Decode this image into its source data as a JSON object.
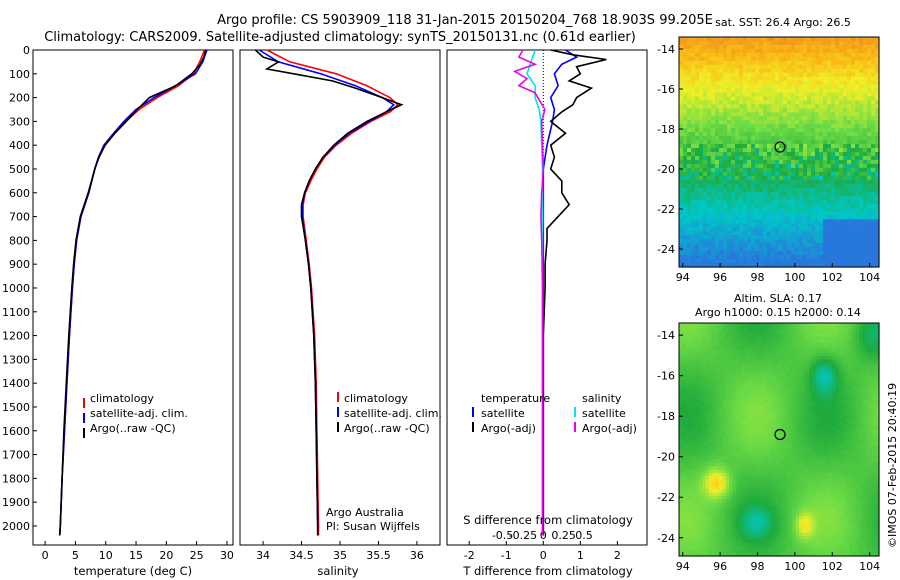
{
  "title": {
    "line1": "Argo profile: CS 5903909_118 31-Jan-2015 20150204_768 18.903S 99.205E",
    "line2": "Climatology: CARS2009. Satellite-adjusted climatology: synTS_20150131.nc (0.61d earlier)"
  },
  "colors": {
    "climatology": "#ff0000",
    "satellite": "#0000ff",
    "argo": "#000000",
    "sat_S": "#00e5ee",
    "argo_S": "#ee00ee"
  },
  "chart_data": [
    {
      "type": "line",
      "panel": "temperature",
      "xlabel": "temperature (deg C)",
      "ylabel": "",
      "xlim": [
        -2,
        31
      ],
      "ylim": [
        0,
        2080
      ],
      "xticks": [
        "0",
        "5",
        "10",
        "15",
        "20",
        "25",
        "30"
      ],
      "yticks": [
        "0",
        "100",
        "200",
        "300",
        "400",
        "500",
        "600",
        "700",
        "800",
        "900",
        "1000",
        "1100",
        "1200",
        "1300",
        "1400",
        "1500",
        "1600",
        "1700",
        "1800",
        "1900",
        "2000"
      ],
      "legend": [
        "climatology",
        "satellite-adj. clim.",
        "Argo(..raw -QC)"
      ],
      "series": [
        {
          "name": "climatology",
          "depth": [
            0,
            50,
            100,
            150,
            200,
            250,
            300,
            350,
            400,
            450,
            500,
            600,
            700,
            800,
            900,
            1000,
            1200,
            1400,
            1600,
            1800,
            2000,
            2040
          ],
          "values": [
            26.3,
            25.5,
            24.5,
            22,
            18.5,
            15.5,
            13.3,
            11.5,
            9.8,
            8.8,
            8.2,
            7.2,
            5.9,
            5.2,
            4.8,
            4.5,
            4.0,
            3.6,
            3.2,
            2.8,
            2.5,
            2.4
          ]
        },
        {
          "name": "satellite-adj. clim.",
          "depth": [
            0,
            50,
            100,
            150,
            200,
            250,
            300,
            350,
            400,
            450,
            500,
            600,
            700,
            800,
            900,
            1000,
            1200,
            1400,
            1600,
            1800,
            2000,
            2040
          ],
          "values": [
            26.7,
            26.0,
            24.8,
            21.5,
            18.0,
            15.0,
            13.0,
            11.3,
            9.7,
            8.8,
            8.2,
            7.2,
            5.9,
            5.2,
            4.8,
            4.5,
            4.0,
            3.6,
            3.2,
            2.8,
            2.5,
            2.4
          ]
        },
        {
          "name": "Argo(..raw -QC)",
          "depth": [
            0,
            30,
            60,
            100,
            150,
            200,
            250,
            300,
            350,
            400,
            450,
            500,
            600,
            700,
            800,
            900,
            1000,
            1200,
            1400,
            1600,
            1800,
            2000,
            2040
          ],
          "values": [
            26.5,
            26.2,
            25.6,
            24.2,
            21.6,
            17.2,
            15.2,
            13.4,
            11.5,
            9.9,
            8.9,
            8.2,
            7.1,
            5.8,
            5.1,
            4.7,
            4.4,
            3.9,
            3.5,
            3.1,
            2.8,
            2.5,
            2.4
          ]
        }
      ]
    },
    {
      "type": "line",
      "panel": "salinity",
      "xlabel": "salinity",
      "xlim": [
        33.7,
        36.3
      ],
      "ylim": [
        0,
        2080
      ],
      "xticks": [
        "34",
        "34.5",
        "35",
        "35.5",
        "36"
      ],
      "legend": [
        "climatology",
        "satellite-adj. clim.",
        "Argo(..raw -QC)"
      ],
      "annotation": [
        "Argo Australia",
        "PI: Susan Wijffels"
      ],
      "series": [
        {
          "name": "climatology",
          "depth": [
            0,
            50,
            100,
            150,
            200,
            230,
            260,
            300,
            350,
            400,
            450,
            500,
            550,
            600,
            650,
            700,
            800,
            900,
            1000,
            1200,
            1400,
            1600,
            1800,
            2000,
            2040
          ],
          "values": [
            34.05,
            34.35,
            34.95,
            35.35,
            35.65,
            35.75,
            35.65,
            35.4,
            35.15,
            34.95,
            34.8,
            34.7,
            34.62,
            34.55,
            34.52,
            34.52,
            34.56,
            34.6,
            34.63,
            34.67,
            34.69,
            34.7,
            34.71,
            34.72,
            34.72
          ]
        },
        {
          "name": "satellite-adj. clim.",
          "depth": [
            0,
            50,
            100,
            150,
            200,
            230,
            260,
            300,
            350,
            400,
            450,
            500,
            550,
            600,
            650,
            700,
            800,
            900,
            1000,
            1200,
            1400,
            1600,
            1800,
            2000,
            2040
          ],
          "values": [
            33.95,
            34.2,
            34.75,
            35.2,
            35.55,
            35.7,
            35.6,
            35.38,
            35.12,
            34.93,
            34.78,
            34.68,
            34.6,
            34.54,
            34.51,
            34.51,
            34.55,
            34.59,
            34.62,
            34.66,
            34.68,
            34.69,
            34.7,
            34.71,
            34.71
          ]
        },
        {
          "name": "Argo(..raw -QC)",
          "depth": [
            0,
            30,
            50,
            80,
            100,
            130,
            160,
            200,
            230,
            260,
            300,
            350,
            400,
            450,
            500,
            550,
            600,
            650,
            700,
            800,
            900,
            1000,
            1200,
            1400,
            1600,
            1800,
            2000,
            2040
          ],
          "values": [
            33.9,
            34.0,
            34.2,
            34.05,
            34.4,
            34.9,
            35.2,
            35.55,
            35.8,
            35.6,
            35.35,
            35.1,
            34.92,
            34.78,
            34.68,
            34.6,
            34.54,
            34.5,
            34.5,
            34.55,
            34.59,
            34.62,
            34.66,
            34.68,
            34.69,
            34.7,
            34.71,
            34.71
          ]
        }
      ]
    },
    {
      "type": "line",
      "panel": "difference",
      "xlabel": "T difference from climatology",
      "toplabel": "S difference from climatology",
      "xlim": [
        -2.6,
        2.8
      ],
      "ylim": [
        0,
        2080
      ],
      "xticks": [
        "-2",
        "-1",
        "0",
        "1",
        "2"
      ],
      "top_ticks": [
        "-0.5",
        "-0.25",
        "0",
        "0.25",
        "0.5"
      ],
      "legend_T": [
        "temperature",
        "satellite",
        "Argo(-adj)"
      ],
      "legend_S": [
        "salinity",
        "satellite",
        "Argo(-adj)"
      ],
      "series": [
        {
          "name": "satellite",
          "quantity": "T",
          "depth": [
            0,
            30,
            60,
            100,
            150,
            200,
            250,
            300,
            400,
            500,
            600,
            800,
            1000,
            1500,
            2000,
            2040
          ],
          "values": [
            0.6,
            0.9,
            0.5,
            0.3,
            0.4,
            0.2,
            0.3,
            0.25,
            0.1,
            0.0,
            0.0,
            0.0,
            0.0,
            0.0,
            0.0,
            0.0
          ]
        },
        {
          "name": "Argo(-adj)",
          "quantity": "T",
          "depth": [
            0,
            20,
            40,
            70,
            100,
            130,
            160,
            200,
            230,
            260,
            300,
            350,
            400,
            450,
            500,
            550,
            600,
            650,
            700,
            750,
            800,
            900,
            1000,
            1200,
            1500,
            1800,
            2000,
            2040
          ],
          "values": [
            0.2,
            0.8,
            1.7,
            0.9,
            1.0,
            0.7,
            1.3,
            0.9,
            0.8,
            0.5,
            0.2,
            0.6,
            0.2,
            0.3,
            0.2,
            0.5,
            0.5,
            0.7,
            0.4,
            0.1,
            0.1,
            0.05,
            0.05,
            0.0,
            0.0,
            0.0,
            0.0,
            0.0
          ]
        },
        {
          "name": "satellite",
          "quantity": "S",
          "depth": [
            0,
            50,
            100,
            150,
            200,
            250,
            300,
            400,
            500,
            600,
            800,
            1000,
            1500,
            2000,
            2040
          ],
          "values": [
            -0.1,
            -0.15,
            -0.2,
            -0.1,
            -0.1,
            -0.05,
            -0.03,
            -0.02,
            -0.01,
            -0.01,
            -0.01,
            -0.01,
            -0.01,
            -0.01,
            -0.01
          ]
        },
        {
          "name": "Argo(-adj)",
          "quantity": "S",
          "depth": [
            0,
            30,
            60,
            90,
            120,
            150,
            180,
            210,
            250,
            300,
            400,
            500,
            600,
            700,
            800,
            1000,
            1500,
            2000,
            2040
          ],
          "values": [
            -0.25,
            -0.3,
            -0.1,
            -0.35,
            -0.2,
            -0.3,
            -0.1,
            -0.05,
            0.02,
            -0.02,
            -0.01,
            0.0,
            -0.02,
            -0.03,
            -0.02,
            -0.01,
            -0.01,
            -0.01,
            -0.01
          ]
        }
      ]
    },
    {
      "type": "heatmap",
      "panel": "sst-map",
      "title": "sat. SST: 26.4  Argo: 26.5",
      "xlim": [
        93.8,
        104.5
      ],
      "ylim": [
        -24.9,
        -13.4
      ],
      "xticks": [
        "94",
        "96",
        "98",
        "100",
        "102",
        "104"
      ],
      "yticks": [
        "-14",
        "-16",
        "-18",
        "-20",
        "-22",
        "-24"
      ],
      "marker": {
        "lon": 99.205,
        "lat": -18.903
      }
    },
    {
      "type": "heatmap",
      "panel": "sla-map",
      "title_line1": "Altim. SLA: 0.17",
      "title_line2": "Argo h1000: 0.15  h2000: 0.14",
      "xlim": [
        93.8,
        104.5
      ],
      "ylim": [
        -24.9,
        -13.4
      ],
      "xticks": [
        "94",
        "96",
        "98",
        "100",
        "102",
        "104"
      ],
      "yticks": [
        "-14",
        "-16",
        "-18",
        "-20",
        "-22",
        "-24"
      ],
      "marker": {
        "lon": 99.205,
        "lat": -18.903
      }
    }
  ],
  "footer": "©IMOS 07-Feb-2015 20:40:19"
}
